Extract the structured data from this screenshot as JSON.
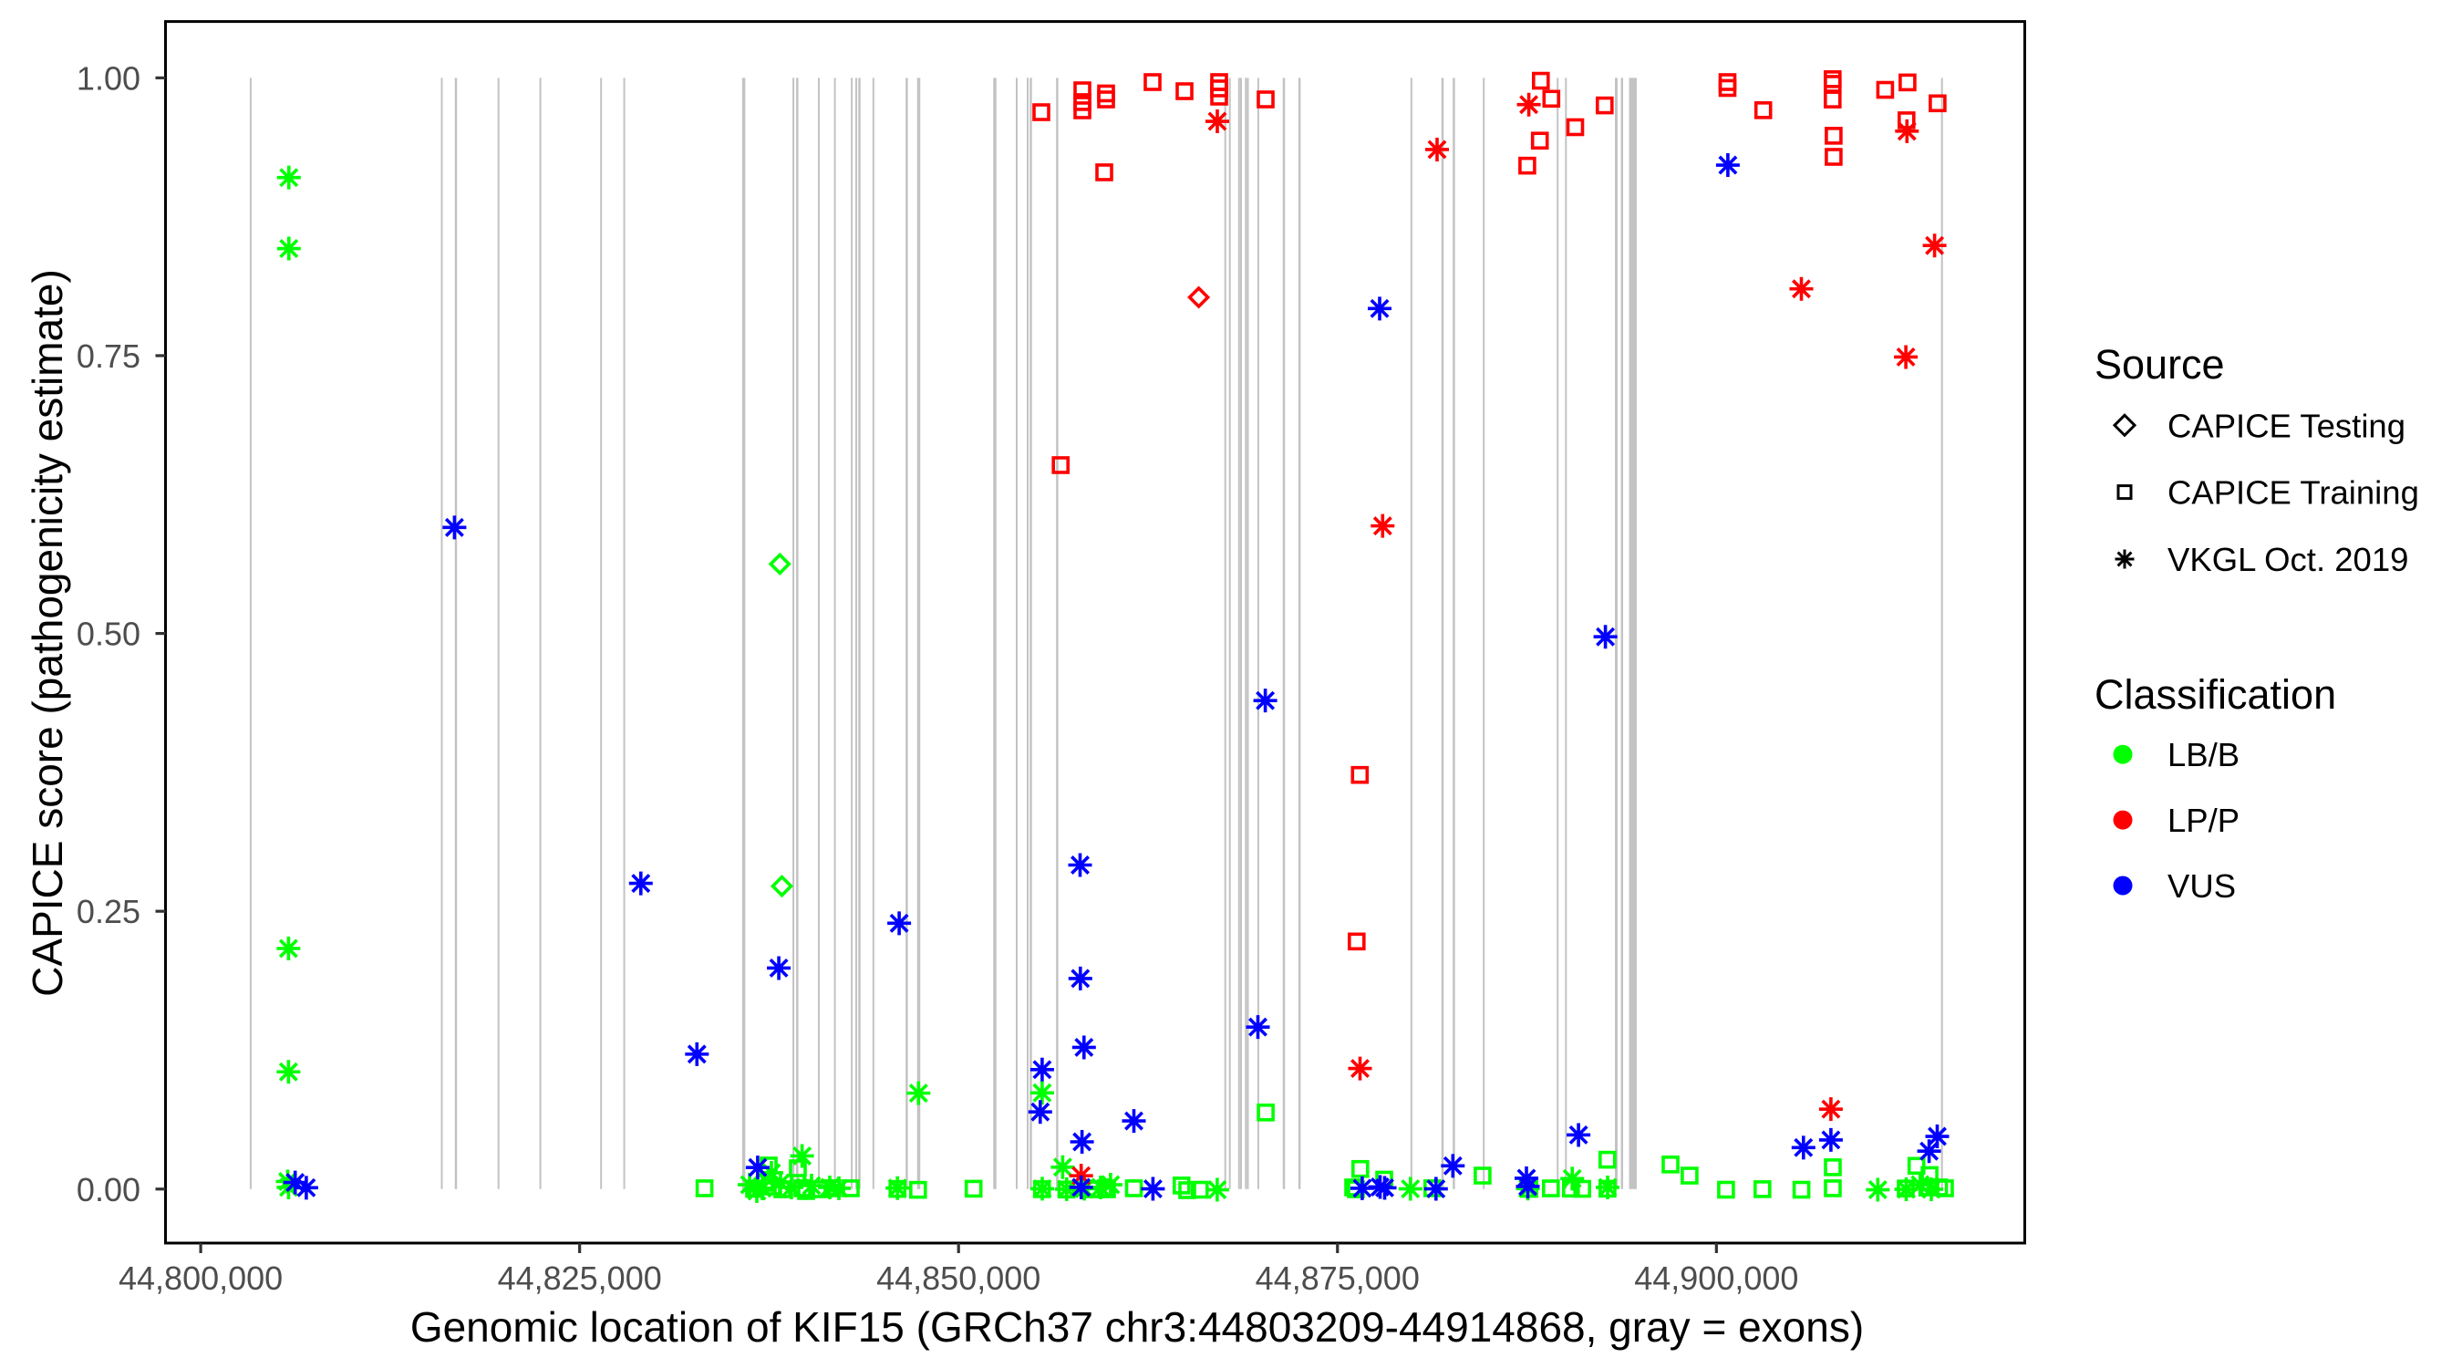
{
  "chart_data": {
    "type": "scatter",
    "title": "",
    "xlabel": "Genomic location of KIF15 (GRCh37 chr3:44803209-44914868, gray = exons)",
    "ylabel": "CAPICE score (pathogenicity estimate)",
    "xlim": [
      44797678,
      44920344
    ],
    "ylim": [
      -0.0486,
      1.0507
    ],
    "grid": false,
    "x_ticks": [
      {
        "value": 44800000,
        "label": "44,800,000"
      },
      {
        "value": 44825000,
        "label": "44,825,000"
      },
      {
        "value": 44850000,
        "label": "44,850,000"
      },
      {
        "value": 44875000,
        "label": "44,875,000"
      },
      {
        "value": 44900000,
        "label": "44,900,000"
      }
    ],
    "y_ticks": [
      {
        "value": 0.0,
        "label": "0.00"
      },
      {
        "value": 0.25,
        "label": "0.25"
      },
      {
        "value": 0.5,
        "label": "0.50"
      },
      {
        "value": 0.75,
        "label": "0.75"
      },
      {
        "value": 1.0,
        "label": "1.00"
      }
    ],
    "exon_color": "#C3C3C3",
    "exon_span": [
      0.0,
      1.0
    ],
    "exons": [
      {
        "start": 44803237,
        "end": 44803357
      },
      {
        "start": 44815846,
        "end": 44815966
      },
      {
        "start": 44816764,
        "end": 44816914
      },
      {
        "start": 44819588,
        "end": 44819708
      },
      {
        "start": 44822349,
        "end": 44822470
      },
      {
        "start": 44826356,
        "end": 44826476
      },
      {
        "start": 44827884,
        "end": 44828004
      },
      {
        "start": 44835720,
        "end": 44835931
      },
      {
        "start": 44839044,
        "end": 44839164
      },
      {
        "start": 44839281,
        "end": 44839432
      },
      {
        "start": 44840722,
        "end": 44840843
      },
      {
        "start": 44841781,
        "end": 44841901
      },
      {
        "start": 44842894,
        "end": 44843014
      },
      {
        "start": 44843189,
        "end": 44843309
      },
      {
        "start": 44843384,
        "end": 44843535
      },
      {
        "start": 44844320,
        "end": 44844440
      },
      {
        "start": 44846507,
        "end": 44846657
      },
      {
        "start": 44847265,
        "end": 44847475
      },
      {
        "start": 44852288,
        "end": 44852499
      },
      {
        "start": 44853777,
        "end": 44853897
      },
      {
        "start": 44854499,
        "end": 44854619
      },
      {
        "start": 44854694,
        "end": 44854845
      },
      {
        "start": 44856433,
        "end": 44856583
      },
      {
        "start": 44867536,
        "end": 44867656
      },
      {
        "start": 44867836,
        "end": 44867957
      },
      {
        "start": 44868444,
        "end": 44868564
      },
      {
        "start": 44868576,
        "end": 44868697
      },
      {
        "start": 44868895,
        "end": 44869016
      },
      {
        "start": 44869028,
        "end": 44869148
      },
      {
        "start": 44869713,
        "end": 44869834
      },
      {
        "start": 44871389,
        "end": 44871539
      },
      {
        "start": 44872418,
        "end": 44872568
      },
      {
        "start": 44879814,
        "end": 44879935
      },
      {
        "start": 44881857,
        "end": 44882007
      },
      {
        "start": 44882603,
        "end": 44882753
      },
      {
        "start": 44884591,
        "end": 44884711
      },
      {
        "start": 44889464,
        "end": 44889584
      },
      {
        "start": 44890011,
        "end": 44890132
      },
      {
        "start": 44893302,
        "end": 44893483
      },
      {
        "start": 44893696,
        "end": 44893847
      },
      {
        "start": 44894238,
        "end": 44894749
      },
      {
        "start": 44914821,
        "end": 44914942
      }
    ],
    "series": [
      {
        "source": "CAPICE Testing",
        "classification": "LB/B",
        "shape": "diamond",
        "color": "#00FF00",
        "points": [
          [
            44838208,
            0.5625
          ],
          [
            44838346,
            0.2726
          ]
        ]
      },
      {
        "source": "CAPICE Testing",
        "classification": "LP/P",
        "shape": "diamond",
        "color": "#FF0000",
        "points": [
          [
            44865845,
            0.8025
          ]
        ]
      },
      {
        "source": "CAPICE Training",
        "classification": "LB/B",
        "shape": "square",
        "color": "#00FF00",
        "points": [
          [
            44833238,
            0.0007
          ],
          [
            44837474,
            0.0212
          ],
          [
            44839399,
            0.0187
          ],
          [
            44837233,
            0.0056
          ],
          [
            44839940,
            -0.0018
          ],
          [
            44836511,
            0.0002
          ],
          [
            44837714,
            0.0023
          ],
          [
            44838376,
            -0.0002
          ],
          [
            44839700,
            0.0007
          ],
          [
            44840903,
            -0.0002
          ],
          [
            44841685,
            0.0007
          ],
          [
            44842888,
            0.0007
          ],
          [
            44845974,
            0.0001
          ],
          [
            44847328,
            -0.0007
          ],
          [
            44850992,
            0.0003
          ],
          [
            44855504,
            -0.0001
          ],
          [
            44857116,
            -0.0004
          ],
          [
            44858951,
            -0.0002
          ],
          [
            44859793,
            -0.0002
          ],
          [
            44861568,
            0.0007
          ],
          [
            44864714,
            0.0032
          ],
          [
            44865087,
            -0.001
          ],
          [
            44865917,
            -0.0006
          ],
          [
            44870267,
            0.0689
          ],
          [
            44876505,
            0.0181
          ],
          [
            44878082,
            0.0085
          ],
          [
            44876036,
            0.0015
          ],
          [
            44876217,
            -0.0002
          ],
          [
            44881258,
            0.0007
          ],
          [
            44884573,
            0.0121
          ],
          [
            44887659,
            0.0002
          ],
          [
            44889079,
            0.0006
          ],
          [
            44890402,
            0.0004
          ],
          [
            44891148,
            0.0002
          ],
          [
            44892809,
            0.0264
          ],
          [
            44892815,
            0.0003
          ],
          [
            44896972,
            0.0221
          ],
          [
            44898229,
            0.0121
          ],
          [
            44900636,
            -0.0006
          ],
          [
            44903036,
            -0.0001
          ],
          [
            44905611,
            -0.0006
          ],
          [
            44907680,
            0.0196
          ],
          [
            44907680,
            0.0007
          ],
          [
            44913197,
            0.0209
          ],
          [
            44914063,
            0.0126
          ],
          [
            44912493,
            0.0005
          ],
          [
            44914033,
            0.0015
          ],
          [
            44914695,
            0.0015
          ],
          [
            44915080,
            0.0007
          ],
          [
            44859721,
            0.0007
          ]
        ]
      },
      {
        "source": "CAPICE Training",
        "classification": "LP/P",
        "shape": "square",
        "color": "#FF0000",
        "points": [
          [
            44855462,
            0.9691
          ],
          [
            44858169,
            0.9888
          ],
          [
            44858169,
            0.9782
          ],
          [
            44858169,
            0.9708
          ],
          [
            44859733,
            0.986
          ],
          [
            44859733,
            0.9806
          ],
          [
            44862801,
            0.9962
          ],
          [
            44864907,
            0.988
          ],
          [
            44867193,
            0.9962
          ],
          [
            44867193,
            0.9905
          ],
          [
            44867193,
            0.9831
          ],
          [
            44870261,
            0.9806
          ],
          [
            44859613,
            0.915
          ],
          [
            44856737,
            0.6515
          ],
          [
            44876475,
            0.3727
          ],
          [
            44876265,
            0.2228
          ],
          [
            44888417,
            0.9974
          ],
          [
            44889109,
            0.9812
          ],
          [
            44890685,
            0.9556
          ],
          [
            44892628,
            0.9752
          ],
          [
            44900732,
            0.9962
          ],
          [
            44900732,
            0.9909
          ],
          [
            44903090,
            0.9709
          ],
          [
            44907668,
            0.9988
          ],
          [
            44907668,
            0.9946
          ],
          [
            44907668,
            0.9805
          ],
          [
            44907735,
            0.9479
          ],
          [
            44907735,
            0.9289
          ],
          [
            44911134,
            0.9892
          ],
          [
            44912607,
            0.9959
          ],
          [
            44912541,
            0.9618
          ],
          [
            44914593,
            0.9771
          ],
          [
            44888351,
            0.9435
          ],
          [
            44887521,
            0.921
          ]
        ]
      },
      {
        "source": "VKGL Oct. 2019",
        "classification": "LB/B",
        "shape": "asterisk",
        "color": "#00FF00",
        "points": [
          [
            44805817,
            0.9103
          ],
          [
            44805817,
            0.8464
          ],
          [
            44805793,
            0.2165
          ],
          [
            44805793,
            0.1055
          ],
          [
            44805739,
            0.0068
          ],
          [
            44805799,
            0.0015
          ],
          [
            44839676,
            0.0298
          ],
          [
            44837654,
            0.0146
          ],
          [
            44836210,
            0.0039
          ],
          [
            44836692,
            -0.0018
          ],
          [
            44838256,
            0.0056
          ],
          [
            44837053,
            0.0007
          ],
          [
            44838978,
            0.0015
          ],
          [
            44840301,
            0.0031
          ],
          [
            44841504,
            0.0015
          ],
          [
            44842106,
            0.0007
          ],
          [
            44845968,
            0.0009
          ],
          [
            44847358,
            0.0863
          ],
          [
            44855516,
            0.0866
          ],
          [
            44855522,
            0.0003
          ],
          [
            44856869,
            0.0197
          ],
          [
            44857134,
            -0.0001
          ],
          [
            44858295,
            0.0003
          ],
          [
            44859372,
            0.0015
          ],
          [
            44860028,
            0.0039
          ],
          [
            44867066,
            -0.0006
          ],
          [
            44879814,
            0.0002
          ],
          [
            44887557,
            0.0004
          ],
          [
            44890487,
            0.0094
          ],
          [
            44892821,
            0.0015
          ],
          [
            44910646,
            -0.0006
          ],
          [
            44912523,
            -0.0002
          ],
          [
            44913438,
            0.0039
          ],
          [
            44914178,
            -0.0002
          ]
        ]
      },
      {
        "source": "VKGL Oct. 2019",
        "classification": "LP/P",
        "shape": "asterisk",
        "color": "#FF0000",
        "points": [
          [
            44867072,
            0.9609
          ],
          [
            44881571,
            0.9355
          ],
          [
            44877979,
            0.5968
          ],
          [
            44876487,
            0.1085
          ],
          [
            44858090,
            0.012
          ],
          [
            44905605,
            0.8101
          ],
          [
            44887623,
            0.9759
          ],
          [
            44907554,
            0.0719
          ],
          [
            44912571,
            0.952
          ],
          [
            44914394,
            0.8491
          ],
          [
            44912499,
            0.7488
          ]
        ]
      },
      {
        "source": "VKGL Oct. 2019",
        "classification": "VUS",
        "shape": "asterisk",
        "color": "#0000FF",
        "points": [
          [
            44806233,
            0.0059
          ],
          [
            44806967,
            0.0012
          ],
          [
            44816743,
            0.5954
          ],
          [
            44829039,
            0.2751
          ],
          [
            44832739,
            0.1214
          ],
          [
            44836746,
            0.0194
          ],
          [
            44838141,
            0.1989
          ],
          [
            44846083,
            0.2392
          ],
          [
            44855389,
            0.0694
          ],
          [
            44855516,
            0.1075
          ],
          [
            44858036,
            0.1895
          ],
          [
            44858018,
            0.2916
          ],
          [
            44858145,
            0.0425
          ],
          [
            44858090,
            0.0015
          ],
          [
            44858277,
            0.1275
          ],
          [
            44861568,
            0.0613
          ],
          [
            44862825,
            0.0002
          ],
          [
            44869750,
            0.1458
          ],
          [
            44870237,
            0.4396
          ],
          [
            44876632,
            0.0007
          ],
          [
            44877811,
            0.0019
          ],
          [
            44878112,
            0.0011
          ],
          [
            44881499,
            0.0002
          ],
          [
            44882612,
            0.0209
          ],
          [
            44887467,
            0.0097
          ],
          [
            44887557,
            0.0023
          ],
          [
            44892676,
            0.497
          ],
          [
            44890902,
            0.0487
          ],
          [
            44900756,
            0.9215
          ],
          [
            44905743,
            0.0373
          ],
          [
            44907554,
            0.0442
          ],
          [
            44914033,
            0.0341
          ],
          [
            44914569,
            0.0474
          ],
          [
            44877781,
            0.7924
          ]
        ]
      }
    ]
  },
  "legend": {
    "source": {
      "title": "Source",
      "items": [
        {
          "label": "CAPICE Testing",
          "shape": "diamond"
        },
        {
          "label": "CAPICE Training",
          "shape": "square"
        },
        {
          "label": "VKGL Oct. 2019",
          "shape": "asterisk"
        }
      ]
    },
    "classification": {
      "title": "Classification",
      "items": [
        {
          "label": "LB/B",
          "color": "#00FF00"
        },
        {
          "label": "LP/P",
          "color": "#FF0000"
        },
        {
          "label": "VUS",
          "color": "#0000FF"
        }
      ]
    }
  },
  "colors": {
    "axis_text": "#4D4D4D",
    "axis_title": "#000000",
    "panel_border": "#000000",
    "tick": "#333333",
    "background": "#FFFFFF"
  }
}
